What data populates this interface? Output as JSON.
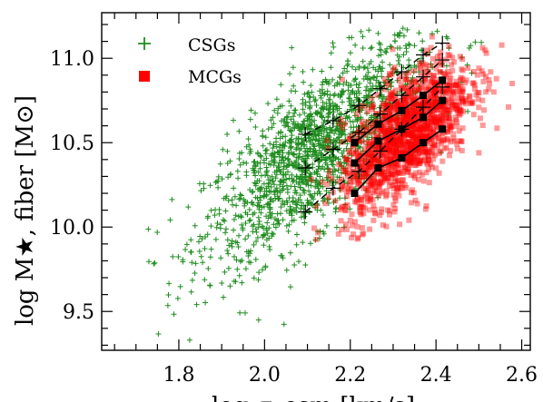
{
  "chart_data": {
    "type": "scatter",
    "xlabel": "log σ_esm [km/s]",
    "ylabel": "log M★, fiber [M⊙]",
    "xlim": [
      1.62,
      2.62
    ],
    "ylim": [
      9.27,
      11.27
    ],
    "x_ticks": [
      "1.8",
      "2.0",
      "2.2",
      "2.4",
      "2.6"
    ],
    "y_ticks": [
      "9.5",
      "10.0",
      "10.5",
      "11.0"
    ],
    "grid": false,
    "legend_placement": "top-left",
    "legend": [
      {
        "label": "CSGs",
        "marker": "plus",
        "color": "#1e8c1e"
      },
      {
        "label": "MCGs",
        "marker": "square",
        "color": "#ff0000"
      }
    ],
    "series": [
      {
        "name": "CSGs",
        "kind": "scatter-cloud",
        "marker": "plus",
        "color": "#1e8c1e",
        "approx_points": 1600,
        "center": [
          2.12,
          10.45
        ],
        "x_range": [
          1.67,
          2.55
        ],
        "y_range": [
          9.32,
          11.18
        ]
      },
      {
        "name": "MCGs",
        "kind": "scatter-cloud",
        "marker": "square",
        "color": "#ff0000",
        "approx_points": 1500,
        "center": [
          2.33,
          10.55
        ],
        "x_range": [
          2.08,
          2.58
        ],
        "y_range": [
          9.9,
          11.15
        ]
      }
    ],
    "csg_percentile_lines": [
      {
        "line": "dashed",
        "x": [
          2.095,
          2.16,
          2.22,
          2.27,
          2.32,
          2.37,
          2.415
        ],
        "y": [
          10.09,
          10.23,
          10.33,
          10.45,
          10.58,
          10.71,
          10.83
        ]
      },
      {
        "line": "dashed",
        "x": [
          2.095,
          2.16,
          2.22,
          2.27,
          2.32,
          2.37,
          2.415
        ],
        "y": [
          10.35,
          10.46,
          10.56,
          10.67,
          10.78,
          10.89,
          10.99
        ]
      },
      {
        "line": "dashed",
        "x": [
          2.095,
          2.16,
          2.22,
          2.27,
          2.32,
          2.37,
          2.415
        ],
        "y": [
          10.55,
          10.63,
          10.72,
          10.82,
          10.92,
          11.02,
          11.09
        ]
      }
    ],
    "mcg_percentile_lines": [
      {
        "line": "solid",
        "x": [
          2.21,
          2.265,
          2.32,
          2.37,
          2.415
        ],
        "y": [
          10.2,
          10.35,
          10.41,
          10.5,
          10.58
        ]
      },
      {
        "line": "solid",
        "x": [
          2.21,
          2.265,
          2.32,
          2.37,
          2.415
        ],
        "y": [
          10.38,
          10.51,
          10.58,
          10.65,
          10.75
        ]
      },
      {
        "line": "solid",
        "x": [
          2.21,
          2.265,
          2.32,
          2.37,
          2.415
        ],
        "y": [
          10.5,
          10.61,
          10.69,
          10.78,
          10.87
        ]
      }
    ]
  }
}
